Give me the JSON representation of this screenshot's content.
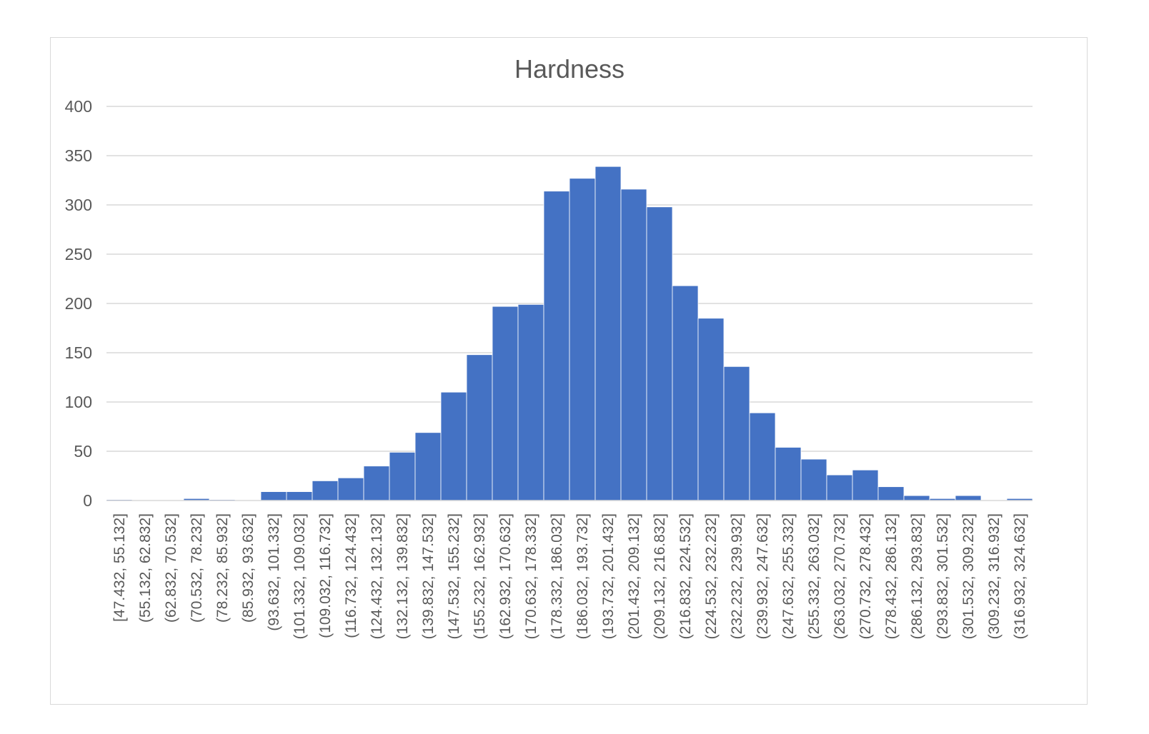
{
  "chart_data": {
    "type": "bar",
    "title": "Hardness",
    "xlabel": "",
    "ylabel": "",
    "ylim": [
      0,
      400
    ],
    "yticks": [
      0,
      50,
      100,
      150,
      200,
      250,
      300,
      350,
      400
    ],
    "grid": true,
    "legend": "none",
    "bar_color": "#4472c4",
    "categories": [
      "[47.432, 55.132]",
      "(55.132, 62.832]",
      "(62.832, 70.532]",
      "(70.532, 78.232]",
      "(78.232, 85.932]",
      "(85.932, 93.632]",
      "(93.632, 101.332]",
      "(101.332, 109.032]",
      "(109.032, 116.732]",
      "(116.732, 124.432]",
      "(124.432, 132.132]",
      "(132.132, 139.832]",
      "(139.832, 147.532]",
      "(147.532, 155.232]",
      "(155.232, 162.932]",
      "(162.932, 170.632]",
      "(170.632, 178.332]",
      "(178.332, 186.032]",
      "(186.032, 193.732]",
      "(193.732, 201.432]",
      "(201.432, 209.132]",
      "(209.132, 216.832]",
      "(216.832, 224.532]",
      "(224.532, 232.232]",
      "(232.232, 239.932]",
      "(239.932, 247.632]",
      "(247.632, 255.332]",
      "(255.332, 263.032]",
      "(263.032, 270.732]",
      "(270.732, 278.432]",
      "(278.432, 286.132]",
      "(286.132, 293.832]",
      "(293.832, 301.532]",
      "(301.532, 309.232]",
      "(309.232, 316.932]",
      "(316.932, 324.632]"
    ],
    "values": [
      1,
      0,
      0,
      2,
      1,
      0,
      9,
      9,
      20,
      23,
      35,
      49,
      69,
      110,
      148,
      197,
      199,
      314,
      327,
      339,
      316,
      298,
      218,
      185,
      136,
      89,
      54,
      42,
      26,
      31,
      14,
      5,
      2,
      5,
      0,
      2
    ]
  }
}
